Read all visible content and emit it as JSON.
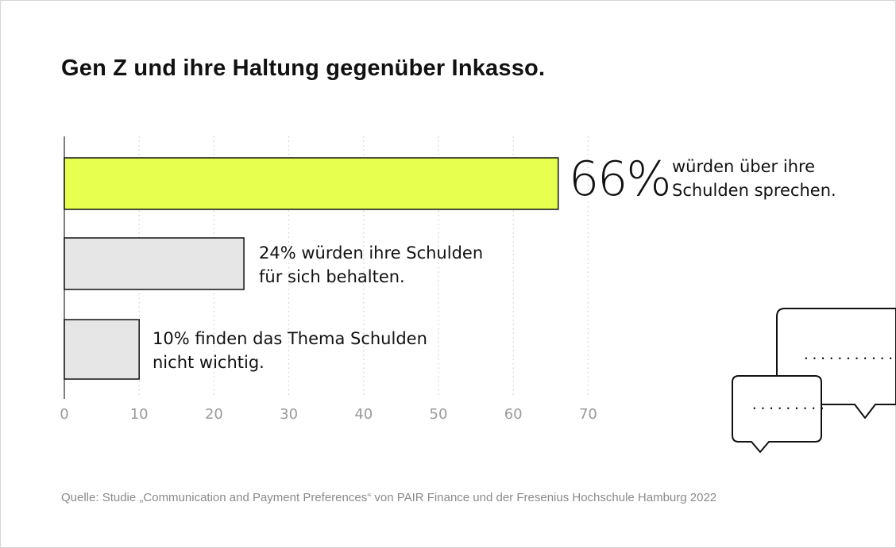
{
  "title": "Gen Z und ihre Haltung gegenüber Inkasso.",
  "source": "Quelle: Studie „Communication and Payment Preferences“ von PAIR Finance und der Fresenius Hochschule Hamburg 2022",
  "highlight": {
    "value_text": "66%",
    "line1": "würden über ihre",
    "line2": "Schulden sprechen."
  },
  "bar_labels": [
    {
      "line1": "24% würden ihre Schulden",
      "line2": "für sich behalten."
    },
    {
      "line1": "10% finden das Thema Schulden",
      "line2": "nicht wichtig."
    }
  ],
  "bubbles": {
    "large_dots": ".............",
    "small_dots": "........."
  },
  "colors": {
    "highlight_bar": "#e7ff4f",
    "neutral_bar": "#e6e6e6",
    "bar_stroke": "#111111",
    "tick_text": "#9a9a9a",
    "grid": "#cfcfcf"
  },
  "chart_data": {
    "type": "bar",
    "orientation": "horizontal",
    "categories": [
      "würden über ihre Schulden sprechen.",
      "würden ihre Schulden für sich behalten.",
      "finden das Thema Schulden nicht wichtig."
    ],
    "values": [
      66,
      24,
      10
    ],
    "unit": "%",
    "xlim": [
      0,
      70
    ],
    "xticks": [
      "0",
      "10",
      "20",
      "30",
      "40",
      "50",
      "60",
      "70"
    ],
    "grid": "vertical dotted",
    "legend": "none"
  }
}
